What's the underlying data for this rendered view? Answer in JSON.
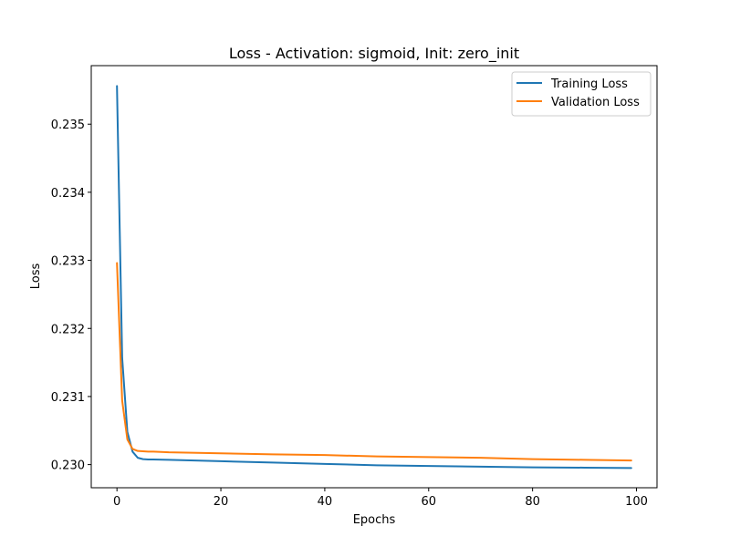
{
  "chart_data": {
    "type": "line",
    "title": "Loss - Activation: sigmoid, Init: zero_init",
    "xlabel": "Epochs",
    "ylabel": "Loss",
    "xlim": [
      -4.95,
      103.95
    ],
    "ylim": [
      0.22966,
      0.23586
    ],
    "xticks": [
      0,
      20,
      40,
      60,
      80,
      100
    ],
    "xtick_labels": [
      "0",
      "20",
      "40",
      "60",
      "80",
      "100"
    ],
    "yticks": [
      0.23,
      0.231,
      0.232,
      0.233,
      0.234,
      0.235
    ],
    "ytick_labels": [
      "0.230",
      "0.231",
      "0.232",
      "0.233",
      "0.234",
      "0.235"
    ],
    "grid": false,
    "legend_position": "top-right",
    "series": [
      {
        "name": "Training Loss",
        "color": "#1f77b4",
        "x": [
          0,
          1,
          2,
          3,
          4,
          5,
          6,
          7,
          10,
          20,
          30,
          40,
          50,
          60,
          70,
          80,
          90,
          99
        ],
        "y": [
          0.23556,
          0.23157,
          0.23048,
          0.23019,
          0.2301,
          0.23008,
          0.230075,
          0.230075,
          0.23007,
          0.23005,
          0.23003,
          0.23001,
          0.22999,
          0.22998,
          0.22997,
          0.22996,
          0.229955,
          0.22995
        ]
      },
      {
        "name": "Validation Loss",
        "color": "#ff7f0e",
        "x": [
          0,
          1,
          2,
          3,
          4,
          5,
          6,
          7,
          10,
          20,
          30,
          40,
          50,
          60,
          70,
          80,
          90,
          99
        ],
        "y": [
          0.23296,
          0.23094,
          0.23037,
          0.23023,
          0.2302,
          0.230195,
          0.23019,
          0.23019,
          0.23018,
          0.230165,
          0.23015,
          0.23014,
          0.23012,
          0.23011,
          0.2301,
          0.23008,
          0.23007,
          0.23006
        ]
      }
    ]
  }
}
